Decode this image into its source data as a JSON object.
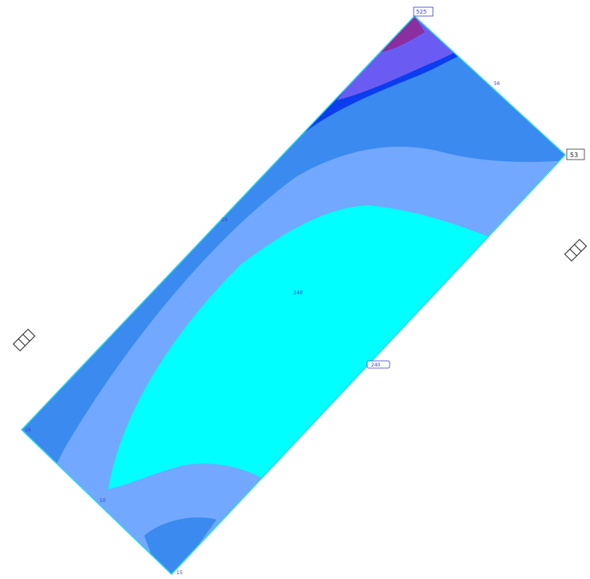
{
  "plot": {
    "colors": {
      "outline": "#2fd6e8",
      "band_purple": "#8a2ea0",
      "band_violet": "#6a5cf2",
      "band_blue": "#0a3cf0",
      "band_mid": "#3a8af0",
      "band_light": "#72a8ff",
      "band_cyan": "#00ffff"
    },
    "labels": {
      "top_corner": "525",
      "right_corner": "53",
      "upper_edge": "56",
      "left_edge_mid": "29",
      "center": "240",
      "right_edge_mid": "240",
      "left_corner": "18",
      "lower_left": "10",
      "bottom_corner": "15"
    },
    "icons": [
      "camera-icon-left",
      "camera-icon-right"
    ]
  }
}
